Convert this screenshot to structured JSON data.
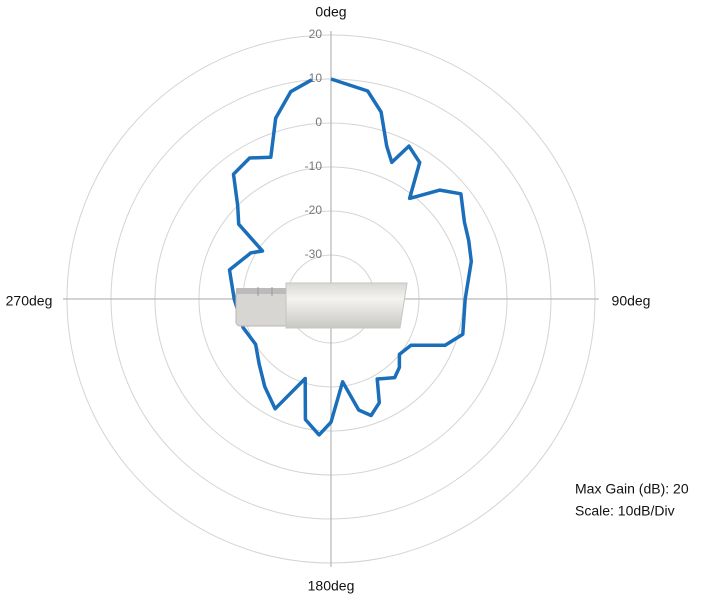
{
  "chart_data": {
    "type": "polar",
    "angle_ticks": [
      {
        "value": 0,
        "label": "0deg"
      },
      {
        "value": 90,
        "label": "90deg"
      },
      {
        "value": 180,
        "label": "180deg"
      },
      {
        "value": 270,
        "label": "270deg"
      }
    ],
    "rlim": [
      -40,
      20
    ],
    "rticks": [
      -30,
      -20,
      -10,
      0,
      10,
      20
    ],
    "annotations": [
      "Max Gain (dB): 20",
      "Scale: 10dB/Div"
    ],
    "series": [
      {
        "color": "#1b6fba",
        "x": [
          0,
          10,
          15,
          20,
          24,
          27,
          33,
          38,
          45,
          51,
          60,
          67,
          75,
          90,
          105,
          112,
          120,
          129,
          135,
          141,
          150,
          155,
          161,
          166,
          172,
          180,
          185,
          192,
          198,
          207,
          217,
          228,
          239,
          252,
          270,
          286,
          300,
          305,
          309,
          315,
          322,
          330,
          337,
          343,
          349,
          355
        ],
        "values": [
          10,
          8,
          4,
          -3,
          -6,
          -1,
          -3,
          -11,
          -5,
          -2,
          -5,
          -6,
          -7,
          -9.5,
          -9,
          -12,
          -19,
          -20,
          -18,
          -17,
          -19,
          -14,
          -12,
          -14,
          -21,
          -12,
          -9,
          -12,
          -21,
          -12,
          -15,
          -18,
          -20,
          -19,
          -18,
          -16,
          -19,
          -21,
          -13,
          -10,
          -4,
          -3,
          -5,
          3,
          8,
          10
        ]
      }
    ]
  }
}
